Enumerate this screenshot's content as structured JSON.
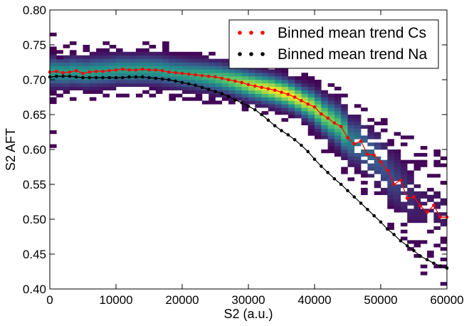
{
  "chart_data": {
    "type": "scatter",
    "title": "",
    "xlabel": "S2 (a.u.)",
    "ylabel": "S2 AFT",
    "xlim": [
      0,
      60000
    ],
    "ylim": [
      0.4,
      0.8
    ],
    "xticks": [
      0,
      10000,
      20000,
      30000,
      40000,
      50000,
      60000
    ],
    "xtick_labels": [
      "0",
      "10000",
      "20000",
      "30000",
      "40000",
      "50000",
      "60000"
    ],
    "yticks": [
      0.4,
      0.45,
      0.5,
      0.55,
      0.6,
      0.65,
      0.7,
      0.75,
      0.8
    ],
    "ytick_labels": [
      "0.40",
      "0.45",
      "0.50",
      "0.55",
      "0.60",
      "0.65",
      "0.70",
      "0.75",
      "0.80"
    ],
    "grid": false,
    "legend_position": "top-right",
    "series": [
      {
        "name": "Binned mean trend Cs",
        "color": "#ff0000",
        "marker_color": "#ff0000",
        "x": [
          0,
          1000,
          2000,
          3000,
          4000,
          5000,
          6000,
          7000,
          8000,
          9000,
          10000,
          11000,
          12000,
          13000,
          14000,
          15000,
          16000,
          17000,
          18000,
          19000,
          20000,
          21000,
          22000,
          23000,
          24000,
          25000,
          26000,
          27000,
          28000,
          29000,
          30000,
          31000,
          32000,
          33000,
          34000,
          35000,
          36000,
          37000,
          38000,
          39000,
          40000,
          41000,
          42000,
          43000,
          44000,
          45000,
          46000,
          47000,
          48000,
          49000,
          50000,
          51000,
          52000,
          53000,
          54000,
          55000,
          56000,
          57000,
          58000,
          59000,
          60000
        ],
        "y": [
          0.711,
          0.712,
          0.71,
          0.711,
          0.713,
          0.709,
          0.711,
          0.712,
          0.712,
          0.713,
          0.714,
          0.715,
          0.714,
          0.714,
          0.715,
          0.714,
          0.714,
          0.713,
          0.711,
          0.71,
          0.709,
          0.708,
          0.707,
          0.706,
          0.705,
          0.704,
          0.702,
          0.7,
          0.698,
          0.696,
          0.693,
          0.691,
          0.689,
          0.687,
          0.685,
          0.682,
          0.679,
          0.675,
          0.67,
          0.665,
          0.661,
          0.651,
          0.645,
          0.638,
          0.633,
          0.617,
          0.608,
          0.612,
          0.593,
          0.592,
          0.582,
          0.57,
          0.55,
          0.556,
          0.53,
          0.532,
          0.519,
          0.51,
          0.52,
          0.503,
          0.503
        ]
      },
      {
        "name": "Binned mean trend Na",
        "color": "#000000",
        "marker_color": "#000000",
        "x": [
          0,
          1000,
          2000,
          3000,
          4000,
          5000,
          6000,
          7000,
          8000,
          9000,
          10000,
          11000,
          12000,
          13000,
          14000,
          15000,
          16000,
          17000,
          18000,
          19000,
          20000,
          21000,
          22000,
          23000,
          24000,
          25000,
          26000,
          27000,
          28000,
          29000,
          30000,
          31000,
          32000,
          33000,
          34000,
          35000,
          36000,
          37000,
          38000,
          39000,
          40000,
          41000,
          42000,
          43000,
          44000,
          45000,
          46000,
          47000,
          48000,
          49000,
          50000,
          51000,
          52000,
          53000,
          54000,
          55000,
          56000,
          57000,
          58000,
          59000,
          60000
        ],
        "y": [
          0.704,
          0.705,
          0.705,
          0.705,
          0.704,
          0.703,
          0.703,
          0.703,
          0.703,
          0.703,
          0.703,
          0.703,
          0.704,
          0.704,
          0.704,
          0.703,
          0.702,
          0.701,
          0.7,
          0.698,
          0.696,
          0.694,
          0.692,
          0.689,
          0.686,
          0.683,
          0.68,
          0.676,
          0.671,
          0.667,
          0.662,
          0.657,
          0.65,
          0.642,
          0.634,
          0.627,
          0.621,
          0.614,
          0.606,
          0.597,
          0.586,
          0.576,
          0.567,
          0.558,
          0.55,
          0.541,
          0.532,
          0.523,
          0.514,
          0.505,
          0.496,
          0.486,
          0.478,
          0.469,
          0.462,
          0.455,
          0.447,
          0.442,
          0.437,
          0.433,
          0.43
        ]
      }
    ],
    "density": {
      "colormap": [
        "#440154",
        "#3b528b",
        "#21918c",
        "#5ec962",
        "#fde725"
      ],
      "bin_width_x": 1000,
      "bin_height_y": 0.005
    }
  }
}
